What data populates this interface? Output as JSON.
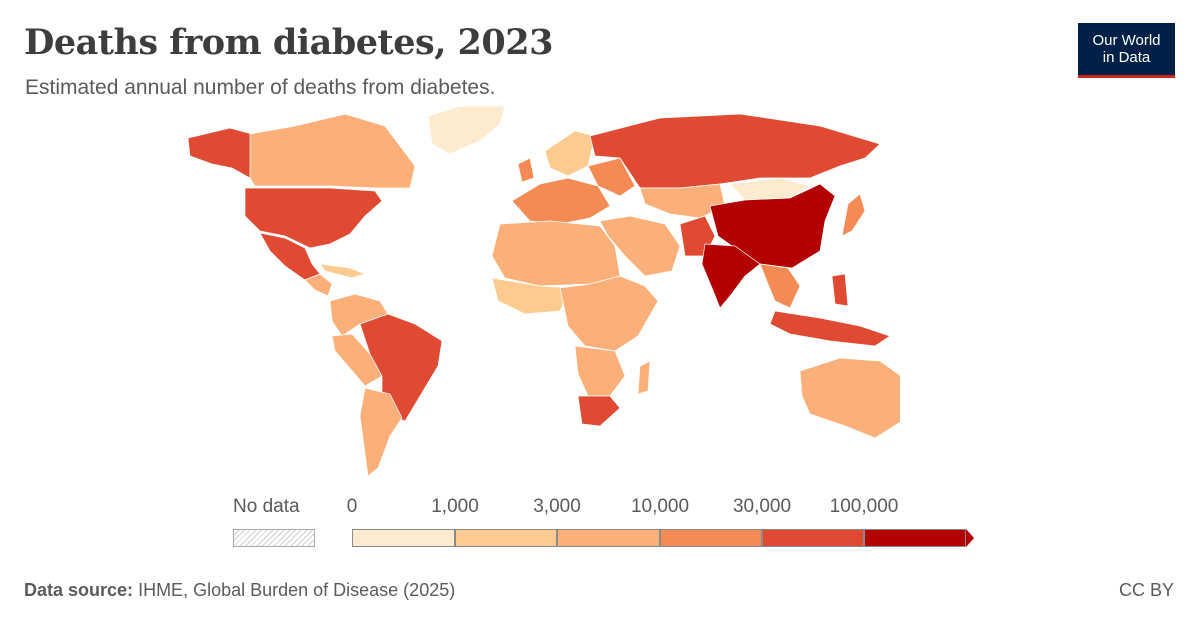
{
  "header": {
    "title": "Deaths from diabetes, 2023",
    "subtitle": "Estimated annual number of deaths from diabetes."
  },
  "logo": {
    "line1": "Our World",
    "line2": "in Data"
  },
  "legend": {
    "no_data_label": "No data",
    "ticks": [
      "0",
      "1,000",
      "3,000",
      "10,000",
      "30,000",
      "100,000"
    ],
    "bins": [
      {
        "range": "0–1,000",
        "color": "#fdebcf"
      },
      {
        "range": "1,000–3,000",
        "color": "#fdcb8f"
      },
      {
        "range": "3,000–10,000",
        "color": "#fbb07a"
      },
      {
        "range": "10,000–30,000",
        "color": "#f58b54"
      },
      {
        "range": "30,000–100,000",
        "color": "#e04a33"
      },
      {
        "range": "100,000+",
        "color": "#b30000"
      }
    ]
  },
  "footer": {
    "source_label": "Data source:",
    "source_text": "IHME, Global Burden of Disease (2025)",
    "license": "CC BY"
  },
  "map_data": {
    "China": "100,000+",
    "India": "100,000+",
    "United States": "30,000–100,000",
    "Mexico": "30,000–100,000",
    "Brazil": "30,000–100,000",
    "Russia": "30,000–100,000",
    "Indonesia": "30,000–100,000",
    "Pakistan": "30,000–100,000",
    "South Africa": "30,000–100,000",
    "Canada": "3,000–10,000",
    "Australia": "3,000–10,000",
    "Greenland": "0–1,000"
  }
}
